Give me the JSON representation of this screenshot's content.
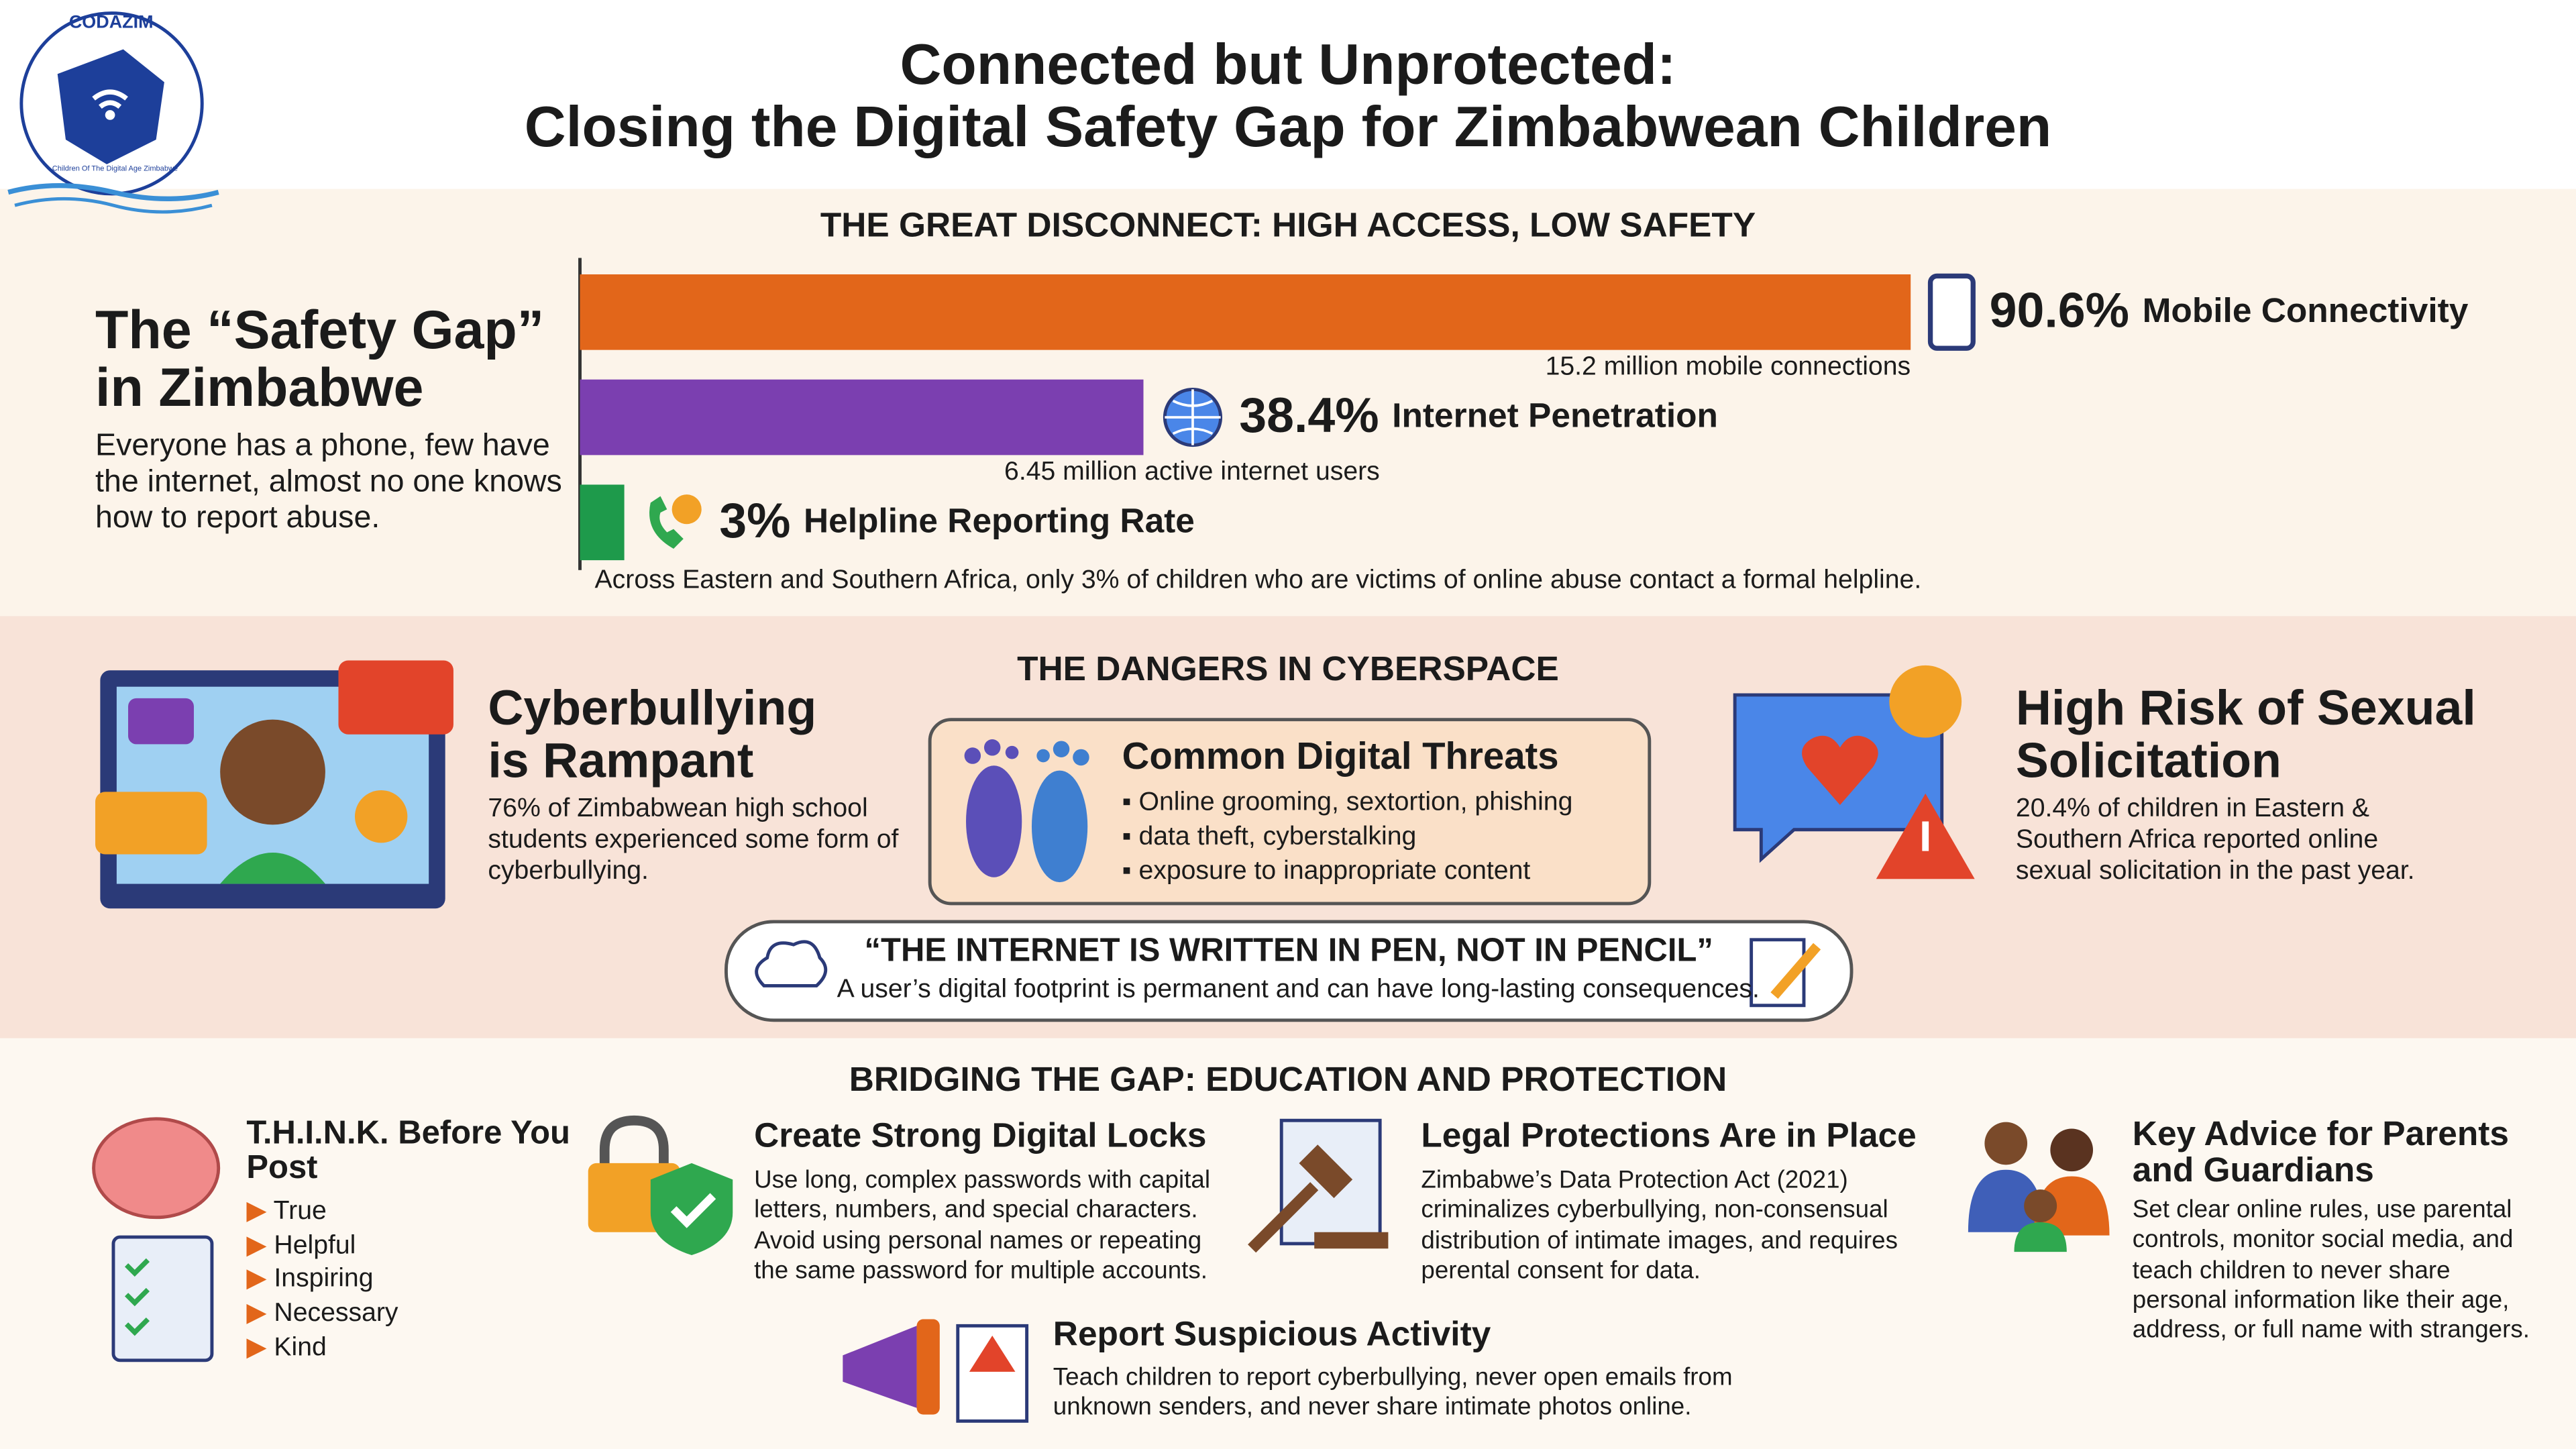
{
  "header": {
    "logo_text": "CODAZIM",
    "logo_tagline": "Children Of The Digital Age Zimbabwe",
    "title_line1": "Connected but Unprotected:",
    "title_line2": "Closing the Digital Safety Gap for Zimbabwean Children"
  },
  "gap_section": {
    "heading": "THE GREAT DISCONNECT: HIGH ACCESS, LOW SAFETY",
    "title": "The “Safety Gap” in Zimbabwe",
    "text": "Everyone has a phone, few have the internet, almost no one knows how to report abuse."
  },
  "chart_data": {
    "type": "bar",
    "orientation": "horizontal",
    "categories": [
      "Mobile Connectivity",
      "Internet Penetration",
      "Helpline Reporting Rate"
    ],
    "values": [
      90.6,
      38.4,
      3
    ],
    "value_labels": [
      "90.6%",
      "38.4%",
      "3%"
    ],
    "colors": [
      "#e2661a",
      "#7b3fb0",
      "#1e9a4b"
    ],
    "notes": [
      "15.2 million mobile connections",
      "6.45 million active internet users"
    ],
    "caption": "Across Eastern and Southern Africa, only 3% of children who are victims of online abuse contact a formal helpline."
  },
  "dangers": {
    "heading": "THE DANGERS IN CYBERSPACE",
    "cyberbullying": {
      "title": "Cyberbullying is Rampant",
      "text": "76% of Zimbabwean high school students experienced some form of cyberbullying."
    },
    "threats": {
      "title": "Common Digital Threats",
      "items": [
        "Online grooming,  sextortion,  phishing",
        "data theft,  cyberstalking",
        "exposure to inappropriate content"
      ]
    },
    "solicitation": {
      "title": "High Risk of Sexual Solicitation",
      "text": "20.4% of children in Eastern & Southern Africa reported online sexual solicitation in the past year."
    },
    "quote": {
      "text": "“THE INTERNET IS WRITTEN IN PEN, NOT IN PENCIL”",
      "subtext": "A user’s digital footprint is permanent and can have long-lasting consequences."
    }
  },
  "bridging": {
    "heading": "BRIDGING THE GAP: EDUCATION AND PROTECTION",
    "think": {
      "title": "T.H.I.N.K. Before You Post",
      "items": [
        "True",
        "Helpful",
        "Inspiring",
        "Necessary",
        "Kind"
      ]
    },
    "locks": {
      "title": "Create Strong Digital Locks",
      "text": "Use long, complex passwords with capital letters, numbers, and special characters. Avoid using personal names or repeating the same password for multiple accounts."
    },
    "legal": {
      "title": "Legal Protections Are in Place",
      "text": "Zimbabwe’s Data Protection Act (2021) criminalizes cyberbullying, non-consensual distribution of intimate images, and requires perental consent for data."
    },
    "parents": {
      "title": "Key Advice for Parents and Guardians",
      "text": "Set clear online rules, use parental controls, monitor social media, and teach children to never share personal information like their age, address, or full name with strangers."
    },
    "report": {
      "title": "Report Suspicious Activity",
      "text": "Teach children to report cyberbullying, never open emails from unknown senders, and never share intimate photos online."
    }
  }
}
